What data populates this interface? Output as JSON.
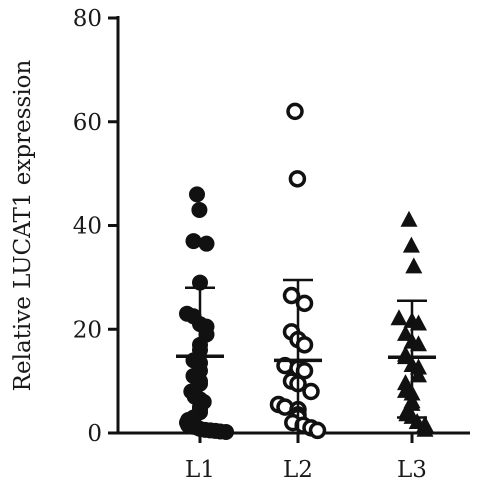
{
  "chart_data": {
    "type": "scatter",
    "title": "",
    "xlabel": "",
    "ylabel": "Relative LUCAT1 expression",
    "ylim": [
      0,
      80
    ],
    "yticks": [
      0,
      20,
      40,
      60,
      80
    ],
    "categories": [
      "L1",
      "L2",
      "L3"
    ],
    "grid": false,
    "legend": "none",
    "colors": {
      "ink": "#111111",
      "open_fill": "#ffffff"
    },
    "series": [
      {
        "category": "L1",
        "marker": "filled-circle",
        "mean": 14.8,
        "sd_upper": 28.0,
        "sd_lower": 1.6,
        "points": [
          46,
          43,
          37,
          36.5,
          29,
          23,
          22.5,
          21,
          20.5,
          19,
          17,
          16,
          14,
          13.5,
          12,
          11,
          10,
          9.5,
          8,
          7.5,
          7,
          6.5,
          6,
          5,
          4.5,
          4,
          3,
          2.5,
          2,
          1.5,
          1.2,
          1,
          0.8,
          0.6,
          0.5,
          0.4,
          0.3,
          0.2
        ]
      },
      {
        "category": "L2",
        "marker": "open-circle",
        "mean": 14.0,
        "sd_upper": 29.5,
        "sd_lower": 0,
        "points": [
          62,
          49,
          26.5,
          25,
          19.5,
          18,
          17,
          13,
          12.5,
          12,
          10,
          9.5,
          8,
          5.5,
          5,
          4.5,
          3.5,
          3,
          2,
          1.5,
          1,
          0.5
        ]
      },
      {
        "category": "L3",
        "marker": "filled-triangle",
        "mean": 14.6,
        "sd_upper": 25.5,
        "sd_lower": 3.0,
        "points": [
          41,
          36,
          32,
          22,
          21.5,
          21,
          19,
          17.5,
          17,
          15,
          14.5,
          13,
          12.5,
          11,
          9.5,
          8,
          7.5,
          6,
          5.5,
          4,
          3.5,
          3,
          2,
          1.5,
          0.5
        ]
      }
    ]
  }
}
